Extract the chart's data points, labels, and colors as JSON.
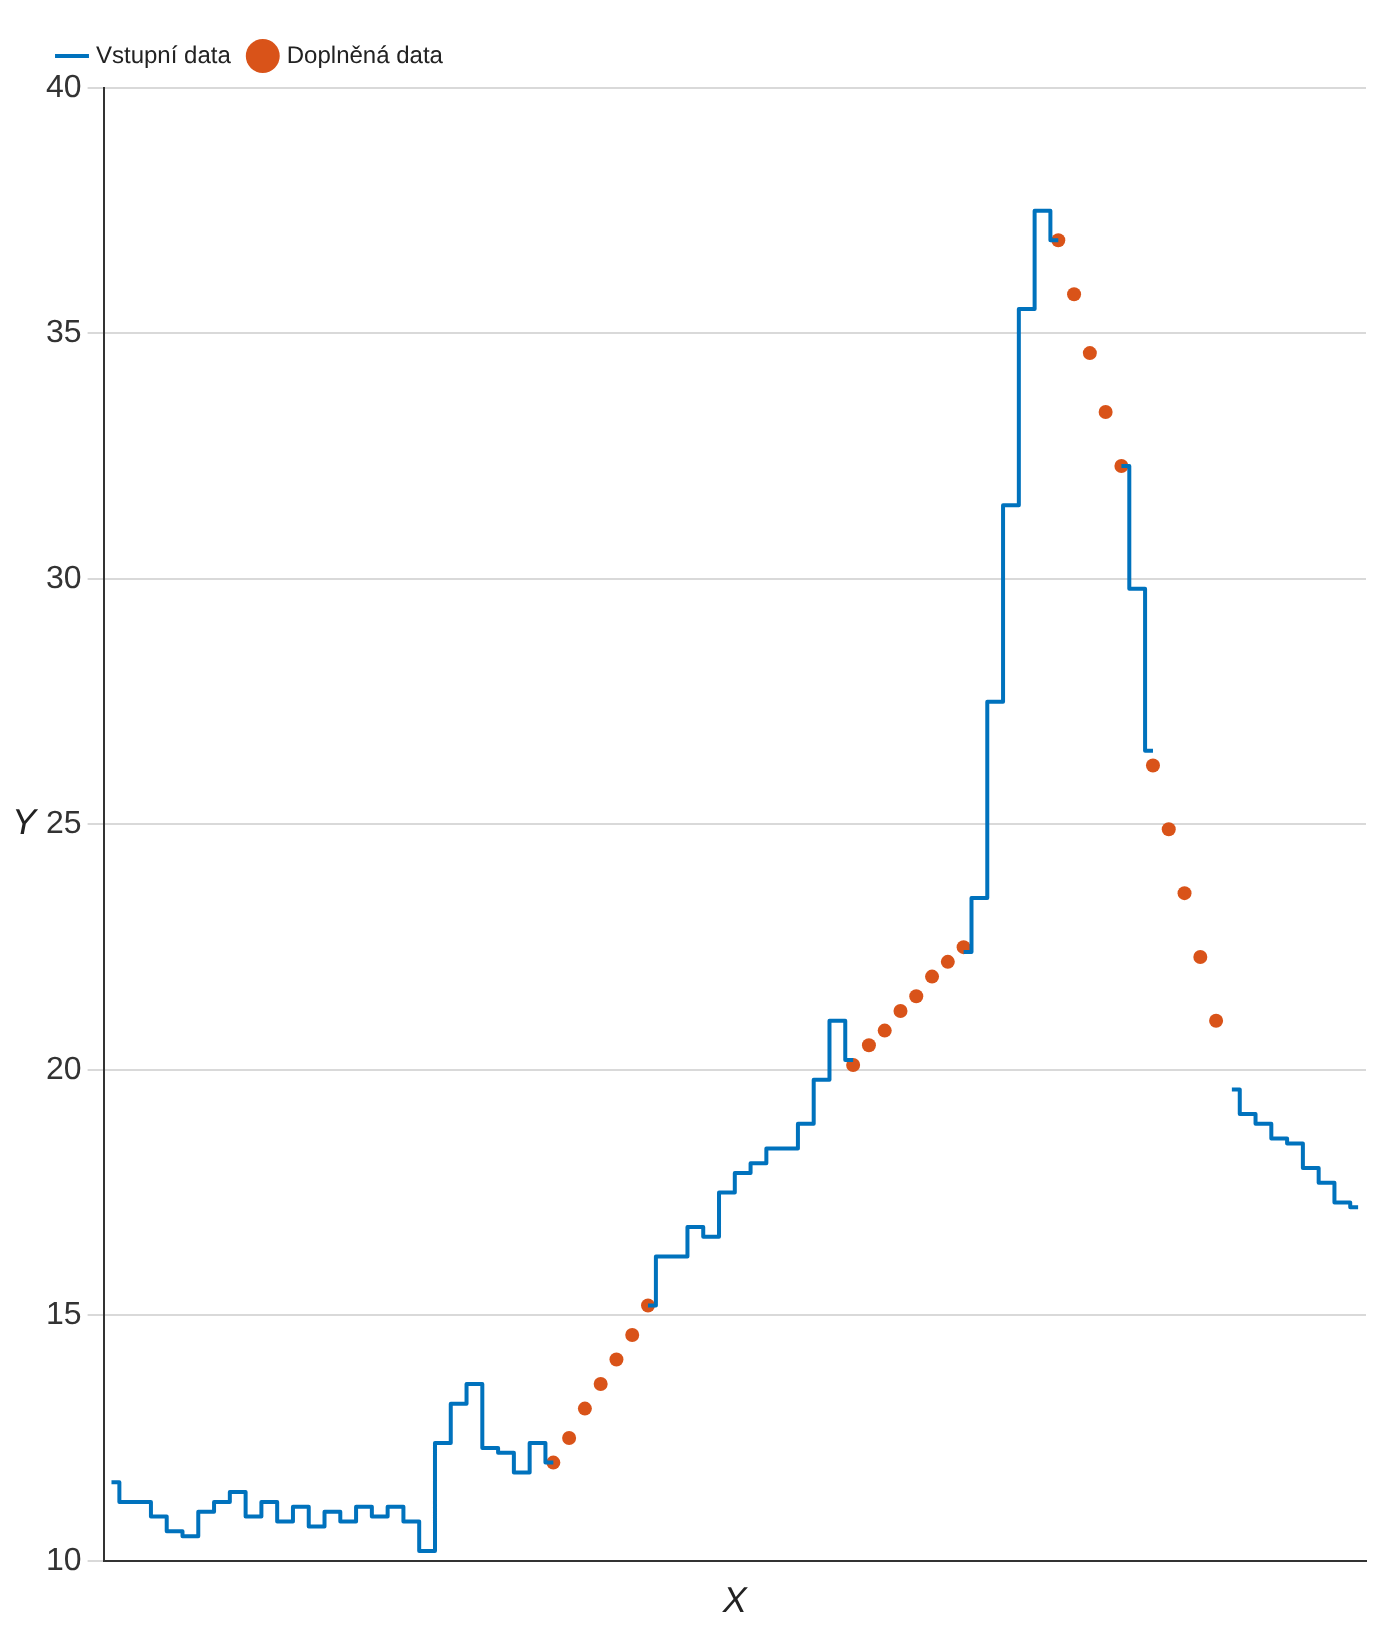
{
  "chart_data": {
    "type": "step",
    "xlabel": "X",
    "ylabel": "Y",
    "categories": [
      null,
      null,
      null,
      null,
      null,
      null,
      null,
      null,
      null,
      null,
      null,
      null,
      null,
      null,
      null,
      null,
      null,
      null,
      null,
      null,
      null,
      null,
      null,
      null,
      null,
      null,
      null,
      null,
      null,
      null,
      null,
      null,
      null,
      null,
      null,
      null,
      null,
      null,
      null,
      null,
      null,
      null,
      null,
      null,
      null,
      null,
      null,
      null,
      null,
      null,
      null,
      null,
      null,
      null,
      null,
      null,
      null,
      null,
      null,
      null,
      null,
      null,
      null,
      null,
      null,
      null,
      null,
      null,
      null,
      null,
      null,
      null,
      null,
      null,
      null,
      null,
      null,
      null,
      null,
      null
    ],
    "ylim": [
      10,
      40
    ],
    "yticks": [
      10,
      15,
      20,
      25,
      30,
      35,
      40
    ],
    "tick_labels": "y",
    "grid": "y",
    "legend": "top left",
    "series": [
      {
        "name": "Vstupní data",
        "color": "#0072bd",
        "values": [
          11.6,
          11.2,
          11.2,
          10.9,
          10.6,
          10.5,
          11,
          11.2,
          11.4,
          10.9,
          11.2,
          10.8,
          11.1,
          10.7,
          11,
          10.8,
          11.1,
          10.9,
          11.1,
          10.8,
          10.2,
          12.4,
          13.2,
          13.6,
          12.3,
          12.2,
          11.8,
          12.4,
          12,
          null,
          null,
          null,
          null,
          null,
          15.2,
          16.2,
          16.2,
          16.8,
          16.6,
          17.5,
          17.9,
          18.1,
          18.4,
          18.4,
          18.9,
          19.8,
          21,
          20.2,
          null,
          null,
          null,
          null,
          null,
          null,
          22.4,
          23.5,
          27.5,
          31.5,
          35.5,
          37.5,
          36.9,
          null,
          null,
          null,
          32.3,
          29.8,
          26.5,
          null,
          null,
          null,
          null,
          19.6,
          19.1,
          18.9,
          18.6,
          18.5,
          18,
          17.7,
          17.3,
          17.2
        ]
      },
      {
        "name": "Doplněná data",
        "type": "scatter",
        "color": "#d95319",
        "values": [
          null,
          null,
          null,
          null,
          null,
          null,
          null,
          null,
          null,
          null,
          null,
          null,
          null,
          null,
          null,
          null,
          null,
          null,
          null,
          null,
          null,
          null,
          null,
          null,
          null,
          null,
          null,
          null,
          12,
          12.5,
          13.1,
          13.6,
          14.1,
          14.6,
          15.2,
          null,
          null,
          null,
          null,
          null,
          null,
          null,
          null,
          null,
          null,
          null,
          null,
          20.1,
          20.5,
          20.8,
          21.2,
          21.5,
          21.9,
          22.2,
          22.5,
          null,
          null,
          null,
          null,
          null,
          36.9,
          35.8,
          34.6,
          33.4,
          32.3,
          null,
          26.2,
          24.9,
          23.6,
          22.3,
          21,
          null,
          null,
          null,
          null,
          null,
          null,
          null,
          null,
          null
        ]
      }
    ]
  }
}
